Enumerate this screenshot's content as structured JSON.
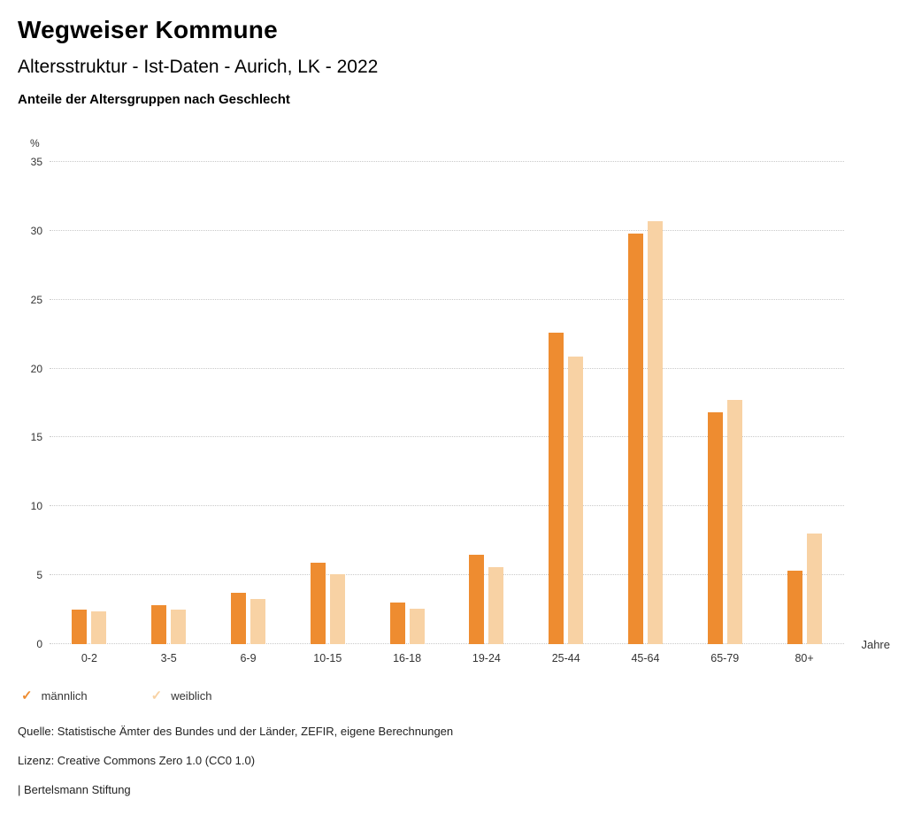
{
  "header": {
    "title": "Wegweiser Kommune",
    "subtitle": "Altersstruktur - Ist-Daten - Aurich, LK - 2022",
    "chart_heading": "Anteile der Altersgruppen nach Geschlecht"
  },
  "chart_data": {
    "type": "bar",
    "title": "Anteile der Altersgruppen nach Geschlecht",
    "categories": [
      "0-2",
      "3-5",
      "6-9",
      "10-15",
      "16-18",
      "19-24",
      "25-44",
      "45-64",
      "65-79",
      "80+"
    ],
    "series": [
      {
        "name": "männlich",
        "color": "#ee8c30",
        "values": [
          2.5,
          2.8,
          3.7,
          5.9,
          3.0,
          6.5,
          22.6,
          29.8,
          16.8,
          5.3
        ]
      },
      {
        "name": "weiblich",
        "color": "#f8d2a4",
        "values": [
          2.4,
          2.5,
          3.3,
          5.1,
          2.6,
          5.6,
          20.9,
          30.7,
          17.7,
          8.0
        ]
      }
    ],
    "ylabel": "%",
    "xlabel": "Jahre",
    "ylim": [
      0,
      35
    ],
    "yticks": [
      0,
      5,
      10,
      15,
      20,
      25,
      30,
      35
    ],
    "grid": true,
    "gridline_style": "dotted",
    "legend_position": "bottom-left",
    "legend_marker": "check"
  },
  "footer": {
    "source": "Quelle: Statistische Ämter des Bundes und der Länder, ZEFIR, eigene Berechnungen",
    "license": "Lizenz: Creative Commons Zero 1.0 (CC0 1.0)",
    "attribution": "| Bertelsmann Stiftung"
  }
}
